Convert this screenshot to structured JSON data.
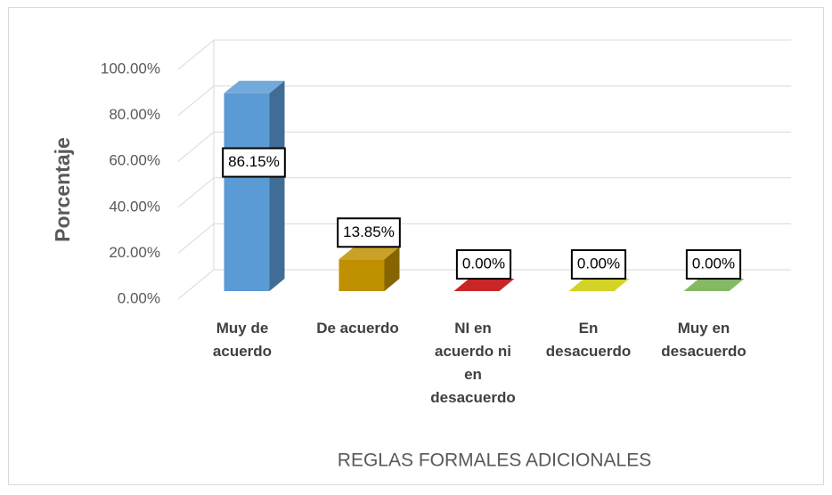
{
  "chart_data": {
    "type": "bar3d",
    "x_label": "REGLAS FORMALES ADICIONALES",
    "y_label": "Porcentaje",
    "categories": [
      "Muy de acuerdo",
      "De acuerdo",
      "NI en acuerdo ni en desacuerdo",
      "En desacuerdo",
      "Muy en desacuerdo"
    ],
    "values": [
      86.15,
      13.85,
      0,
      0,
      0
    ],
    "value_labels": [
      "86.15%",
      "13.85%",
      "0.00%",
      "0.00%",
      "0.00%"
    ],
    "colors": [
      "#5b9bd5",
      "#bf9000",
      "#c00000",
      "#cccc00",
      "#70ad47"
    ],
    "ylim": [
      0,
      100
    ],
    "yticks": [
      {
        "value": 0,
        "label": "0.00%"
      },
      {
        "value": 20,
        "label": "20.00%"
      },
      {
        "value": 40,
        "label": "40.00%"
      },
      {
        "value": 60,
        "label": "60.00%"
      },
      {
        "value": 80,
        "label": "80.00%"
      },
      {
        "value": 100,
        "label": "100.00%"
      }
    ],
    "grid": true
  }
}
